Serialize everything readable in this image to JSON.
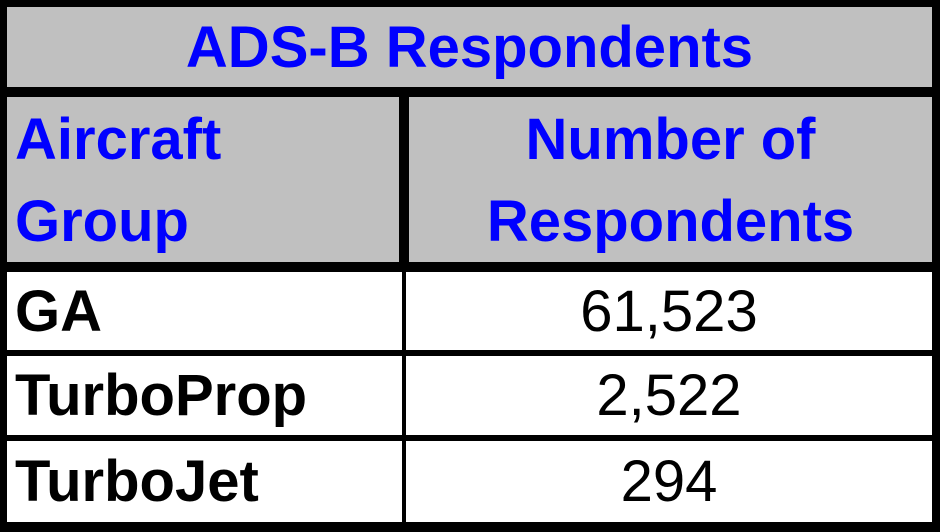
{
  "chart_data": {
    "type": "table",
    "title": "ADS-B Respondents",
    "columns": [
      "Aircraft Group",
      "Number of Respondents"
    ],
    "rows": [
      {
        "group": "GA",
        "respondents": "61,523"
      },
      {
        "group": "TurboProp",
        "respondents": "2,522"
      },
      {
        "group": "TurboJet",
        "respondents": "294"
      }
    ],
    "colors": {
      "header_bg": "#c0c0c0",
      "header_text": "#0000ff",
      "body_bg": "#ffffff",
      "body_text": "#000000",
      "border": "#000000"
    }
  }
}
